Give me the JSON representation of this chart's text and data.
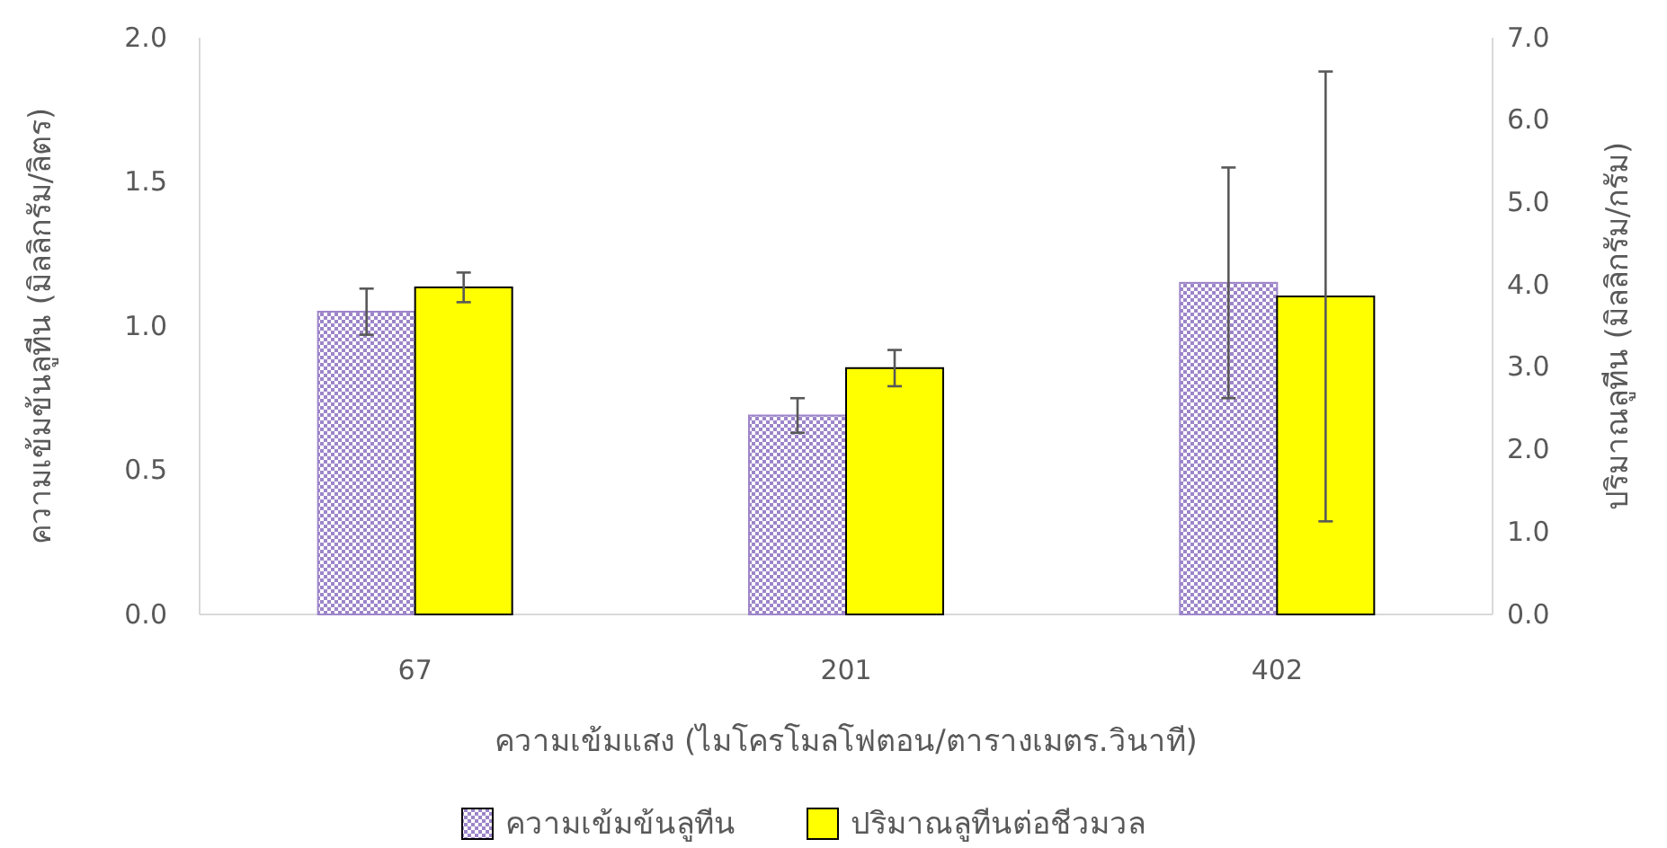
{
  "chart_data": {
    "type": "bar",
    "categories": [
      "67",
      "201",
      "402"
    ],
    "xlabel": "ความเข้มแสง (ไมโครโมลโฟตอน/ตารางเมตร.วินาที)",
    "ylabel": "ความเข้มข้นลูทีน (มิลลิกรัม/ลิตร)",
    "y2label": "ปริมาณลูทีน (มิลลิกรัม/กรัม)",
    "series": [
      {
        "name": "ความเข้มข้นลูทีน",
        "color": "#9d85c9",
        "values": [
          1.05,
          0.69,
          1.15
        ],
        "errors": [
          0.08,
          0.06,
          0.4
        ]
      },
      {
        "name": "ปริมาณลูทีนต่อชีวมวล",
        "color": "#ffff00",
        "values": [
          3.97,
          2.99,
          3.86
        ],
        "errors": [
          0.18,
          0.22,
          2.73
        ],
        "axis": "y2"
      }
    ],
    "ylim": [
      0,
      2
    ],
    "yticks": [
      {
        "value": 0,
        "label": "0.0"
      },
      {
        "value": 0.5,
        "label": "0.5"
      },
      {
        "value": 1,
        "label": "1.0"
      },
      {
        "value": 1.5,
        "label": "1.5"
      },
      {
        "value": 2,
        "label": "2.0"
      }
    ],
    "y2lim": [
      0,
      7
    ],
    "y2ticks": [
      {
        "value": 0,
        "label": "0.0"
      },
      {
        "value": 1,
        "label": "1.0"
      },
      {
        "value": 2,
        "label": "2.0"
      },
      {
        "value": 3,
        "label": "3.0"
      },
      {
        "value": 4,
        "label": "4.0"
      },
      {
        "value": 5,
        "label": "5.0"
      },
      {
        "value": 6,
        "label": "6.0"
      },
      {
        "value": 7,
        "label": "7.0"
      }
    ],
    "legend": "bottom"
  }
}
